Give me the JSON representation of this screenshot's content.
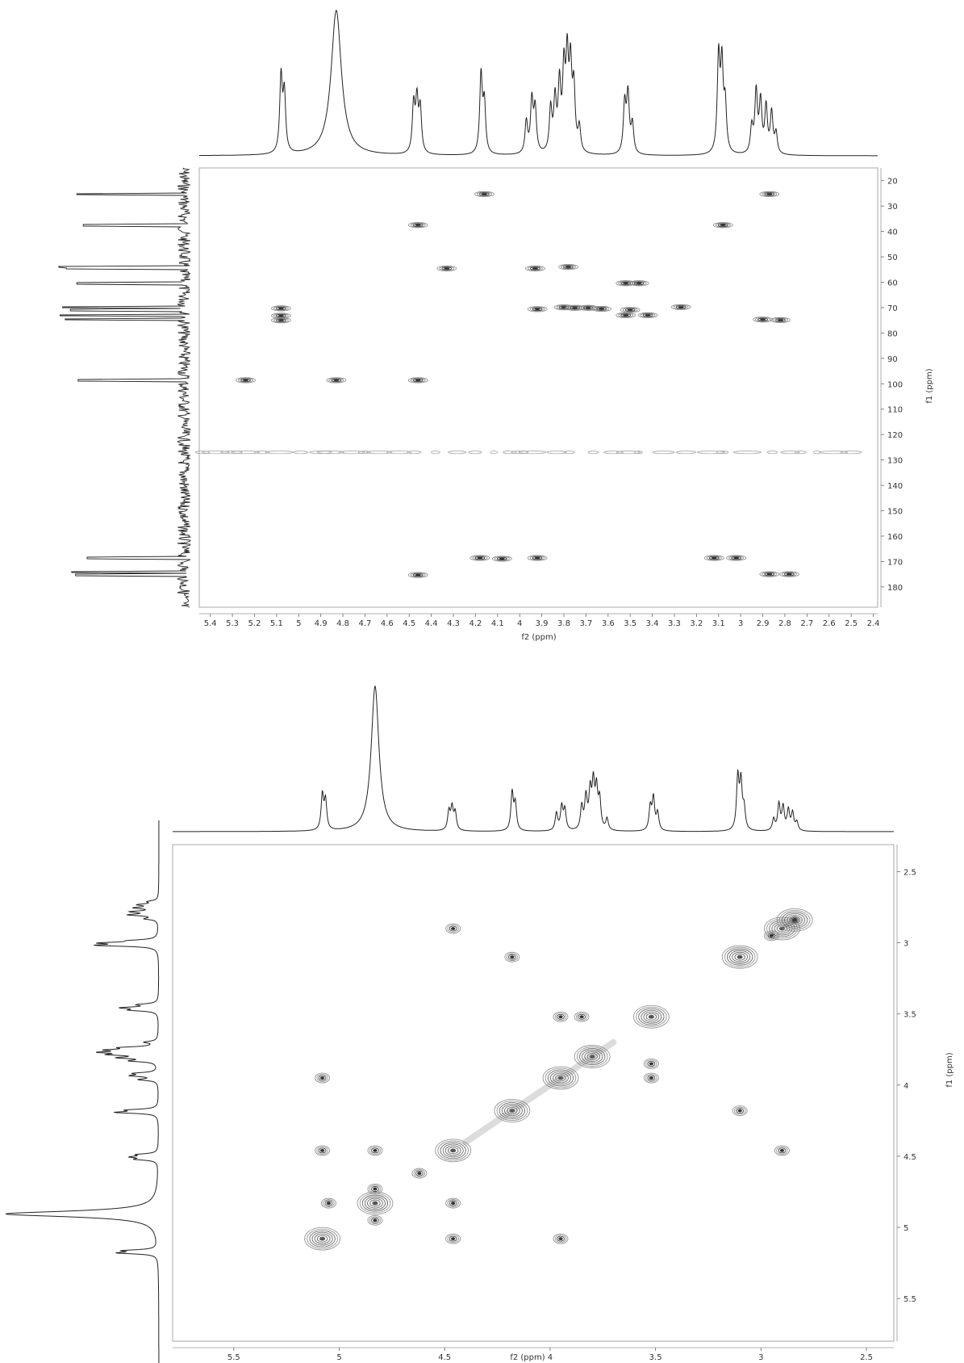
{
  "chart_data": [
    {
      "type": "heatmap",
      "subtype": "2D NMR contour (1H-13C heteronuclear)",
      "xlabel": "f2 (ppm)",
      "ylabel": "f1 (ppm)",
      "xlim": [
        5.45,
        2.38
      ],
      "ylim": [
        15,
        188
      ],
      "x_ticks": [
        "5.4",
        "5.3",
        "5.2",
        "5.1",
        "5",
        "4.9",
        "4.8",
        "4.7",
        "4.6",
        "4.5",
        "4.4",
        "4.3",
        "4.2",
        "4.1",
        "4",
        "3.9",
        "3.8",
        "3.7",
        "3.6",
        "3.5",
        "3.4",
        "3.3",
        "3.2",
        "3.1",
        "3",
        "2.9",
        "2.8",
        "2.7",
        "2.6",
        "2.5",
        "2.4"
      ],
      "y_ticks": [
        "20",
        "30",
        "40",
        "50",
        "60",
        "70",
        "80",
        "90",
        "100",
        "110",
        "120",
        "130",
        "140",
        "150",
        "160",
        "170",
        "180"
      ],
      "top_projection_peaks": [
        {
          "x": 5.08,
          "h": 0.52
        },
        {
          "x": 5.065,
          "h": 0.4
        },
        {
          "x": 4.83,
          "h": 1.0,
          "broad": true
        },
        {
          "x": 4.48,
          "h": 0.33
        },
        {
          "x": 4.465,
          "h": 0.35
        },
        {
          "x": 4.45,
          "h": 0.3
        },
        {
          "x": 4.175,
          "h": 0.54
        },
        {
          "x": 4.16,
          "h": 0.34
        },
        {
          "x": 3.97,
          "h": 0.22
        },
        {
          "x": 3.945,
          "h": 0.36
        },
        {
          "x": 3.93,
          "h": 0.3
        },
        {
          "x": 3.86,
          "h": 0.3
        },
        {
          "x": 3.84,
          "h": 0.35
        },
        {
          "x": 3.82,
          "h": 0.45
        },
        {
          "x": 3.8,
          "h": 0.53
        },
        {
          "x": 3.785,
          "h": 0.6
        },
        {
          "x": 3.77,
          "h": 0.55
        },
        {
          "x": 3.755,
          "h": 0.42
        },
        {
          "x": 3.73,
          "h": 0.17
        },
        {
          "x": 3.525,
          "h": 0.34
        },
        {
          "x": 3.51,
          "h": 0.4
        },
        {
          "x": 3.49,
          "h": 0.2
        },
        {
          "x": 3.1,
          "h": 0.65
        },
        {
          "x": 3.085,
          "h": 0.58
        },
        {
          "x": 3.07,
          "h": 0.32
        },
        {
          "x": 2.95,
          "h": 0.18
        },
        {
          "x": 2.93,
          "h": 0.42
        },
        {
          "x": 2.91,
          "h": 0.35
        },
        {
          "x": 2.885,
          "h": 0.32
        },
        {
          "x": 2.86,
          "h": 0.28
        },
        {
          "x": 2.84,
          "h": 0.14
        }
      ],
      "left_projection_peaks": [
        {
          "y": 25.3,
          "h": 0.83
        },
        {
          "y": 37.5,
          "h": 0.78
        },
        {
          "y": 54.0,
          "h": 0.97
        },
        {
          "y": 54.6,
          "h": 0.91
        },
        {
          "y": 60.4,
          "h": 0.83
        },
        {
          "y": 69.8,
          "h": 0.94
        },
        {
          "y": 70.9,
          "h": 0.88
        },
        {
          "y": 73.0,
          "h": 0.96
        },
        {
          "y": 74.6,
          "h": 0.92
        },
        {
          "y": 98.6,
          "h": 0.82
        },
        {
          "y": 168.6,
          "h": 0.75
        },
        {
          "y": 174.2,
          "h": 0.87
        },
        {
          "y": 175.3,
          "h": 0.84
        }
      ],
      "cross_peaks": [
        {
          "x": 4.16,
          "y": 25.3
        },
        {
          "x": 2.87,
          "y": 25.3
        },
        {
          "x": 4.46,
          "y": 37.5
        },
        {
          "x": 3.08,
          "y": 37.5
        },
        {
          "x": 4.33,
          "y": 54.6
        },
        {
          "x": 3.93,
          "y": 54.6
        },
        {
          "x": 3.78,
          "y": 54.0
        },
        {
          "x": 3.52,
          "y": 60.4
        },
        {
          "x": 3.46,
          "y": 60.4
        },
        {
          "x": 5.08,
          "y": 70.3
        },
        {
          "x": 5.08,
          "y": 73.2
        },
        {
          "x": 5.08,
          "y": 75.0
        },
        {
          "x": 3.92,
          "y": 70.6
        },
        {
          "x": 3.8,
          "y": 69.9
        },
        {
          "x": 3.75,
          "y": 70.1
        },
        {
          "x": 3.69,
          "y": 70.1
        },
        {
          "x": 3.63,
          "y": 70.5
        },
        {
          "x": 3.5,
          "y": 70.9
        },
        {
          "x": 3.52,
          "y": 73.0
        },
        {
          "x": 3.42,
          "y": 73.0
        },
        {
          "x": 3.27,
          "y": 69.8
        },
        {
          "x": 2.9,
          "y": 74.7
        },
        {
          "x": 2.82,
          "y": 74.9
        },
        {
          "x": 5.24,
          "y": 98.6
        },
        {
          "x": 4.46,
          "y": 98.6
        },
        {
          "x": 4.83,
          "y": 98.6
        },
        {
          "x": 4.18,
          "y": 168.6
        },
        {
          "x": 4.08,
          "y": 168.9
        },
        {
          "x": 3.92,
          "y": 168.6
        },
        {
          "x": 3.12,
          "y": 168.6
        },
        {
          "x": 3.02,
          "y": 168.6
        },
        {
          "x": 4.46,
          "y": 175.3
        },
        {
          "x": 2.87,
          "y": 175.0
        },
        {
          "x": 2.78,
          "y": 175.0
        }
      ],
      "noise_row_y": 127.0
    },
    {
      "type": "heatmap",
      "subtype": "2D NMR contour (1H-1H homonuclear)",
      "xlabel": "f2 (ppm)",
      "ylabel": "f1 (ppm)",
      "xlim": [
        5.79,
        2.37
      ],
      "ylim": [
        2.31,
        5.8
      ],
      "x_ticks": [
        "5.5",
        "5",
        "4.5",
        "4",
        "3.5",
        "3",
        "2.5"
      ],
      "y_ticks": [
        "2.5",
        "3",
        "3.5",
        "4",
        "4.5",
        "5",
        "5.5"
      ],
      "diagonal_peaks": [
        {
          "x": 5.08,
          "y": 5.08
        },
        {
          "x": 4.83,
          "y": 4.83
        },
        {
          "x": 4.46,
          "y": 4.46
        },
        {
          "x": 4.18,
          "y": 4.18
        },
        {
          "x": 3.95,
          "y": 3.95
        },
        {
          "x": 3.8,
          "y": 3.8
        },
        {
          "x": 3.52,
          "y": 3.52
        },
        {
          "x": 3.1,
          "y": 3.1
        },
        {
          "x": 2.9,
          "y": 2.9
        },
        {
          "x": 2.84,
          "y": 2.84
        }
      ],
      "cross_peaks": [
        {
          "x": 4.46,
          "y": 2.9
        },
        {
          "x": 4.18,
          "y": 3.1
        },
        {
          "x": 3.95,
          "y": 3.52
        },
        {
          "x": 3.85,
          "y": 3.52
        },
        {
          "x": 5.08,
          "y": 3.95
        },
        {
          "x": 3.52,
          "y": 3.85
        },
        {
          "x": 3.52,
          "y": 3.95
        },
        {
          "x": 3.1,
          "y": 4.18
        },
        {
          "x": 5.08,
          "y": 4.46
        },
        {
          "x": 4.83,
          "y": 4.46
        },
        {
          "x": 2.9,
          "y": 4.46
        },
        {
          "x": 4.62,
          "y": 4.62
        },
        {
          "x": 4.83,
          "y": 4.73
        },
        {
          "x": 5.05,
          "y": 4.83
        },
        {
          "x": 4.83,
          "y": 4.95
        },
        {
          "x": 4.46,
          "y": 4.83
        },
        {
          "x": 4.46,
          "y": 5.08
        },
        {
          "x": 3.95,
          "y": 5.08
        },
        {
          "x": 2.84,
          "y": 2.84
        },
        {
          "x": 2.95,
          "y": 2.95
        }
      ],
      "top_projection_peaks": [
        {
          "x": 5.08,
          "h": 0.24
        },
        {
          "x": 5.065,
          "h": 0.2
        },
        {
          "x": 4.83,
          "h": 1.0,
          "broad": true
        },
        {
          "x": 4.48,
          "h": 0.13
        },
        {
          "x": 4.465,
          "h": 0.15
        },
        {
          "x": 4.45,
          "h": 0.12
        },
        {
          "x": 4.18,
          "h": 0.26
        },
        {
          "x": 4.165,
          "h": 0.18
        },
        {
          "x": 3.97,
          "h": 0.12
        },
        {
          "x": 3.945,
          "h": 0.16
        },
        {
          "x": 3.93,
          "h": 0.14
        },
        {
          "x": 3.85,
          "h": 0.16
        },
        {
          "x": 3.83,
          "h": 0.22
        },
        {
          "x": 3.81,
          "h": 0.25
        },
        {
          "x": 3.795,
          "h": 0.3
        },
        {
          "x": 3.78,
          "h": 0.26
        },
        {
          "x": 3.765,
          "h": 0.2
        },
        {
          "x": 3.73,
          "h": 0.08
        },
        {
          "x": 3.525,
          "h": 0.16
        },
        {
          "x": 3.51,
          "h": 0.22
        },
        {
          "x": 3.49,
          "h": 0.12
        },
        {
          "x": 3.11,
          "h": 0.36
        },
        {
          "x": 3.095,
          "h": 0.32
        },
        {
          "x": 3.08,
          "h": 0.14
        },
        {
          "x": 2.94,
          "h": 0.08
        },
        {
          "x": 2.915,
          "h": 0.18
        },
        {
          "x": 2.895,
          "h": 0.16
        },
        {
          "x": 2.87,
          "h": 0.14
        },
        {
          "x": 2.85,
          "h": 0.12
        },
        {
          "x": 2.83,
          "h": 0.06
        }
      ]
    }
  ]
}
